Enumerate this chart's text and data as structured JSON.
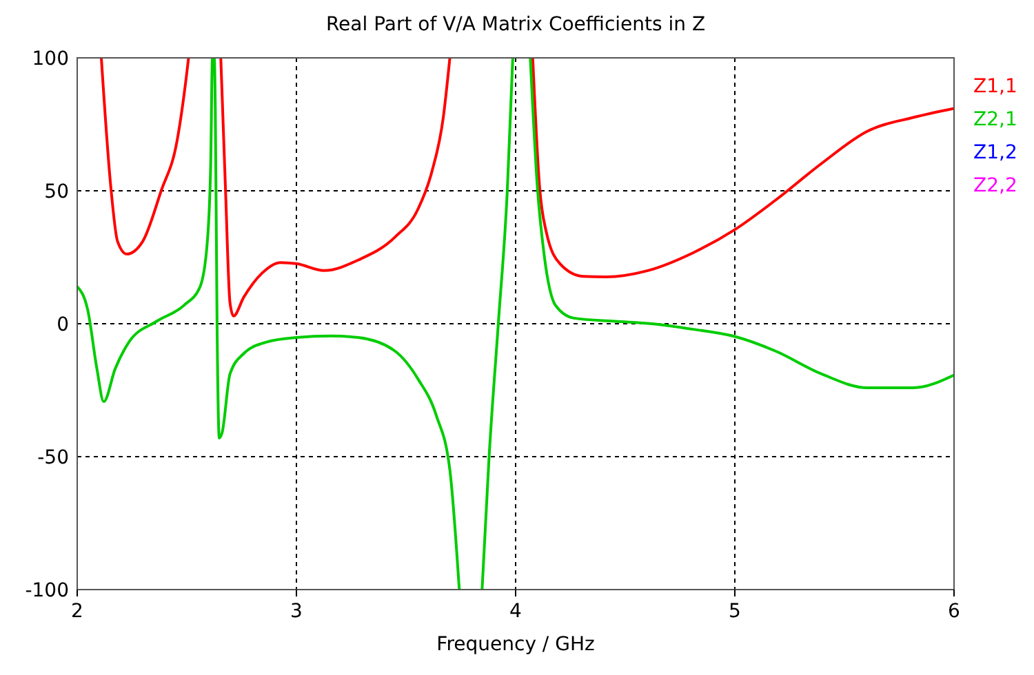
{
  "chart_data": {
    "type": "line",
    "title": "Real Part of V/A Matrix Coefficients in Z",
    "xlabel": "Frequency / GHz",
    "xlim": [
      2,
      6
    ],
    "ylim": [
      -100,
      100
    ],
    "xticks": [
      2,
      3,
      4,
      5,
      6
    ],
    "yticks": [
      -100,
      -50,
      0,
      50,
      100
    ],
    "grid": true,
    "legend": "right",
    "line_style": "solid",
    "marker": "none",
    "series": [
      {
        "name": "Z1,1",
        "color": "#ff0000",
        "x": [
          2.11,
          2.153,
          2.184,
          2.226,
          2.299,
          2.383,
          2.456,
          2.498,
          2.508,
          2.58,
          2.655,
          2.676,
          2.697,
          2.713,
          2.76,
          2.843,
          2.927,
          3.0,
          3.126,
          3.283,
          3.45,
          3.554,
          3.617,
          3.67,
          3.7,
          3.9,
          4.078,
          4.109,
          4.14,
          4.203,
          4.308,
          4.412,
          4.6,
          4.81,
          5.0,
          5.186,
          5.396,
          5.605,
          5.814,
          6.0
        ],
        "values": [
          100,
          51.7,
          31,
          26.2,
          31,
          50,
          69,
          93,
          100,
          null,
          100,
          51.7,
          7.9,
          2.9,
          10,
          19,
          23,
          22.6,
          20,
          24,
          32.6,
          43,
          56.9,
          77.6,
          100,
          null,
          100,
          51.7,
          34.5,
          22.5,
          17.8,
          17.6,
          19.9,
          26.7,
          35.4,
          46.5,
          60.3,
          72.4,
          77.6,
          81
        ]
      },
      {
        "name": "Z2,1",
        "color": "#00cc00",
        "x": [
          2.0,
          2.048,
          2.09,
          2.121,
          2.173,
          2.236,
          2.362,
          2.487,
          2.56,
          2.592,
          2.609,
          2.617,
          2.625,
          2.63,
          2.638,
          2.648,
          2.661,
          2.697,
          2.76,
          2.864,
          3.0,
          3.157,
          3.283,
          3.45,
          3.554,
          3.638,
          3.7,
          3.743,
          3.8,
          3.847,
          3.879,
          3.921,
          3.962,
          3.987,
          4.03,
          4.067,
          4.099,
          4.13,
          4.182,
          4.266,
          4.454,
          4.62,
          4.81,
          5.0,
          5.186,
          5.396,
          5.605,
          5.814,
          6.0
        ],
        "values": [
          14,
          5.2,
          -17,
          -29.3,
          -17,
          -6.9,
          0.9,
          6.9,
          13.8,
          29.3,
          60,
          100,
          100,
          81,
          0,
          -43,
          -41,
          -18.9,
          -11.2,
          -6.9,
          -5.2,
          -4.6,
          -5.2,
          -10.3,
          -20.7,
          -34.5,
          -55,
          -100,
          null,
          -100,
          -50,
          0,
          50,
          100,
          null,
          100,
          51.7,
          26,
          6.9,
          2.1,
          0.9,
          0,
          -2.1,
          -4.8,
          -10.3,
          -18.9,
          -24.1,
          -24.1,
          -19.3
        ]
      },
      {
        "name": "Z1,2",
        "color": "#0000ff"
      },
      {
        "name": "Z2,2",
        "color": "#ff00ff"
      }
    ]
  }
}
